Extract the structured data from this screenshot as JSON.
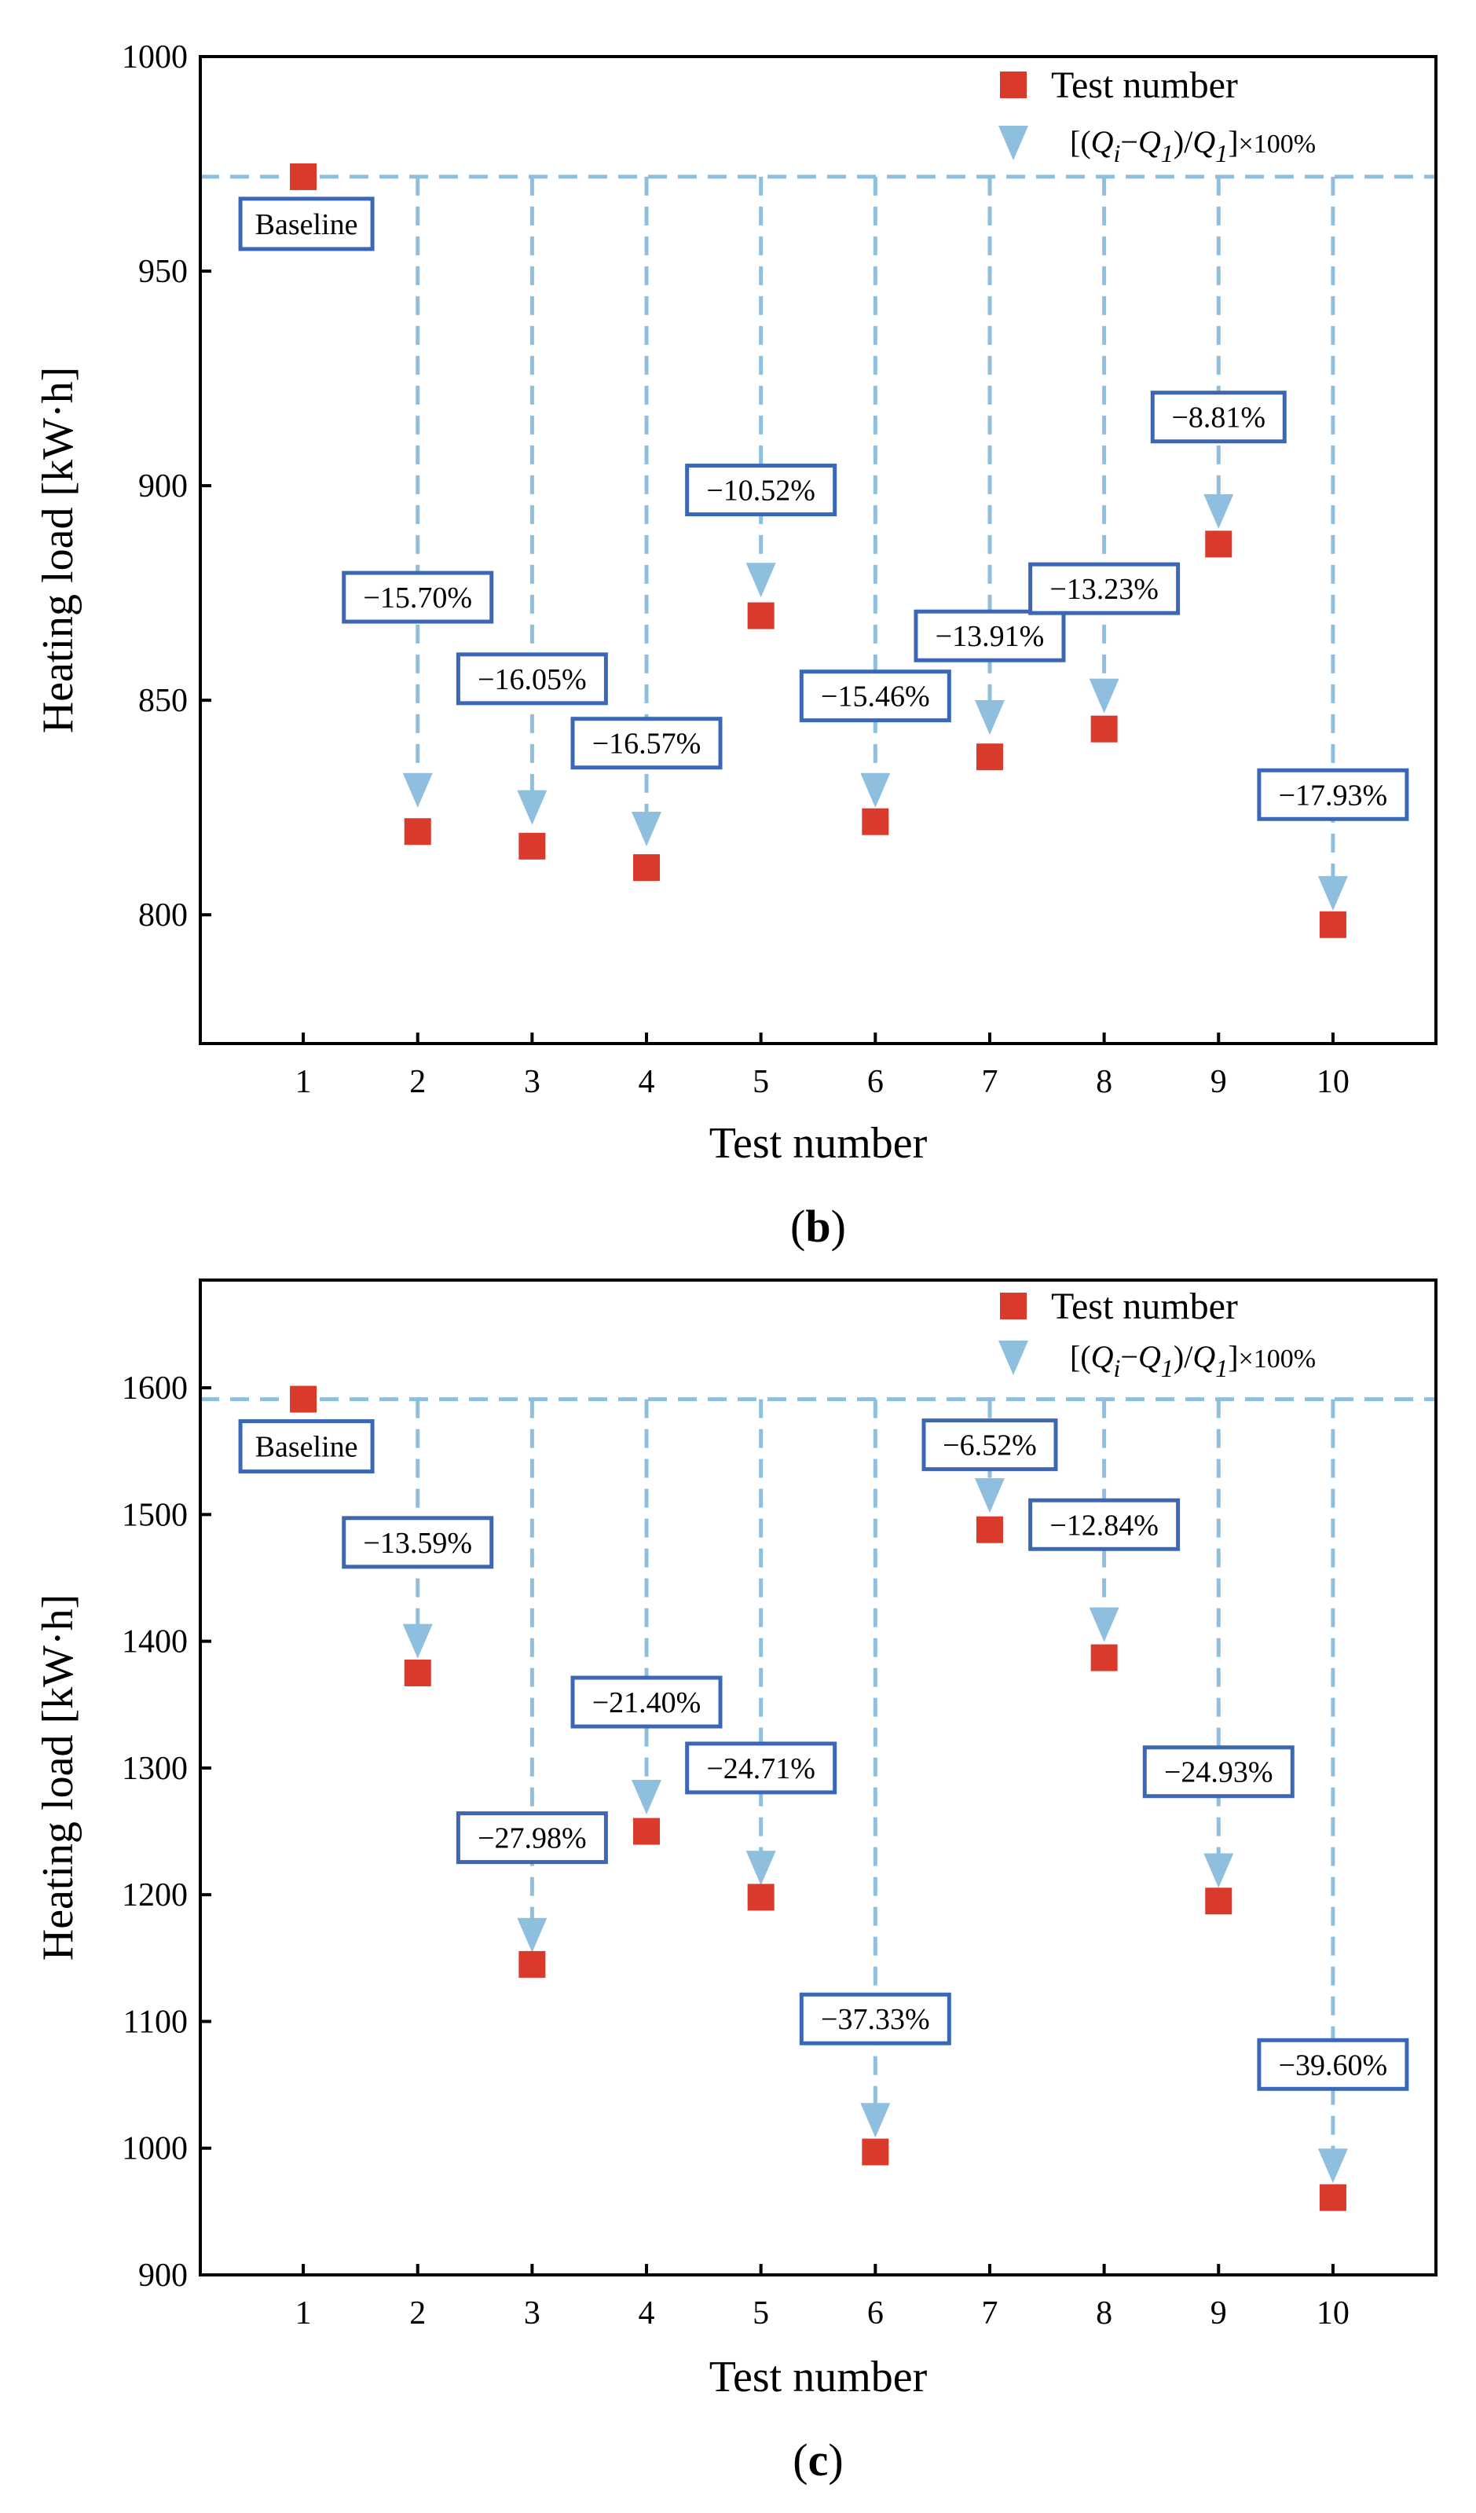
{
  "colors": {
    "marker": "#d93a2b",
    "arrow": "#8fbfdf",
    "dashed": "#8fbfdf",
    "box": "#3b67b4",
    "axis": "#000000"
  },
  "chart_data": [
    {
      "panel": "(b)",
      "panel_letter": "b",
      "type": "scatter",
      "xlabel": "Test number",
      "ylabel": "Heating load [kW·h]",
      "xlim": [
        0.1,
        10.9
      ],
      "ylim": [
        770,
        1000
      ],
      "x_ticks": [
        1,
        2,
        3,
        4,
        5,
        6,
        7,
        8,
        9,
        10
      ],
      "y_ticks": [
        800,
        850,
        900,
        950,
        1000
      ],
      "baseline": 972,
      "baseline_label": "Baseline",
      "legend": {
        "marker_label": "Test number",
        "formula": {
          "open": "[(",
          "q_i": "Q",
          "i_sub": "i",
          "minus": "−",
          "q_1": "Q",
          "one_sub": "1",
          "slash": ")/",
          "q_1b": "Q",
          "one_sub_b": "1",
          "close": "]",
          "times": "×100%"
        }
      },
      "series": [
        {
          "name": "Test number",
          "x": [
            1,
            2,
            3,
            4,
            5,
            6,
            7,
            8,
            9,
            10
          ],
          "values": [
            972,
            819.4,
            816,
            811,
            869.7,
            821.7,
            836.8,
            843.3,
            886.4,
            797.7
          ]
        }
      ],
      "annotations": [
        {
          "x": 2,
          "label": "−15.70%",
          "box_y": 874,
          "arrow_y": 829
        },
        {
          "x": 3,
          "label": "−16.05%",
          "box_y": 855,
          "arrow_y": 825
        },
        {
          "x": 4,
          "label": "−16.57%",
          "box_y": 840,
          "arrow_y": 820
        },
        {
          "x": 5,
          "label": "−10.52%",
          "box_y": 899,
          "arrow_y": 878
        },
        {
          "x": 6,
          "label": "−15.46%",
          "box_y": 851,
          "arrow_y": 829
        },
        {
          "x": 7,
          "label": "−13.91%",
          "box_y": 865,
          "arrow_y": 846
        },
        {
          "x": 8,
          "label": "−13.23%",
          "box_y": 876,
          "arrow_y": 851
        },
        {
          "x": 9,
          "label": "−8.81%",
          "box_y": 916,
          "arrow_y": 894
        },
        {
          "x": 10,
          "label": "−17.93%",
          "box_y": 828,
          "arrow_y": 805
        }
      ]
    },
    {
      "panel": "(c)",
      "panel_letter": "c",
      "type": "scatter",
      "xlabel": "Test number",
      "ylabel": "Heating load [kW·h]",
      "xlim": [
        0.1,
        10.9
      ],
      "ylim": [
        900,
        1685
      ],
      "x_ticks": [
        1,
        2,
        3,
        4,
        5,
        6,
        7,
        8,
        9,
        10
      ],
      "y_ticks": [
        900,
        1000,
        1100,
        1200,
        1300,
        1400,
        1500,
        1600
      ],
      "baseline": 1591,
      "baseline_label": "Baseline",
      "legend": {
        "marker_label": "Test number",
        "formula": {
          "open": "[(",
          "q_i": "Q",
          "i_sub": "i",
          "minus": "−",
          "q_1": "Q",
          "one_sub": "1",
          "slash": ")/",
          "q_1b": "Q",
          "one_sub_b": "1",
          "close": "]",
          "times": "×100%"
        }
      },
      "series": [
        {
          "name": "Test number",
          "x": [
            1,
            2,
            3,
            4,
            5,
            6,
            7,
            8,
            9,
            10
          ],
          "values": [
            1591,
            1375,
            1145,
            1250,
            1198,
            997,
            1488,
            1387,
            1195,
            961
          ]
        }
      ],
      "annotations": [
        {
          "x": 2,
          "label": "−13.59%",
          "box_y": 1478,
          "arrow_y": 1400
        },
        {
          "x": 3,
          "label": "−27.98%",
          "box_y": 1245,
          "arrow_y": 1168
        },
        {
          "x": 4,
          "label": "−21.40%",
          "box_y": 1352,
          "arrow_y": 1277
        },
        {
          "x": 5,
          "label": "−24.71%",
          "box_y": 1300,
          "arrow_y": 1221
        },
        {
          "x": 6,
          "label": "−37.33%",
          "box_y": 1102,
          "arrow_y": 1022
        },
        {
          "x": 7,
          "label": "−6.52%",
          "box_y": 1555,
          "arrow_y": 1515
        },
        {
          "x": 8,
          "label": "−12.84%",
          "box_y": 1492,
          "arrow_y": 1413
        },
        {
          "x": 9,
          "label": "−24.93%",
          "box_y": 1297,
          "arrow_y": 1219
        },
        {
          "x": 10,
          "label": "−39.60%",
          "box_y": 1066,
          "arrow_y": 986
        }
      ]
    }
  ]
}
